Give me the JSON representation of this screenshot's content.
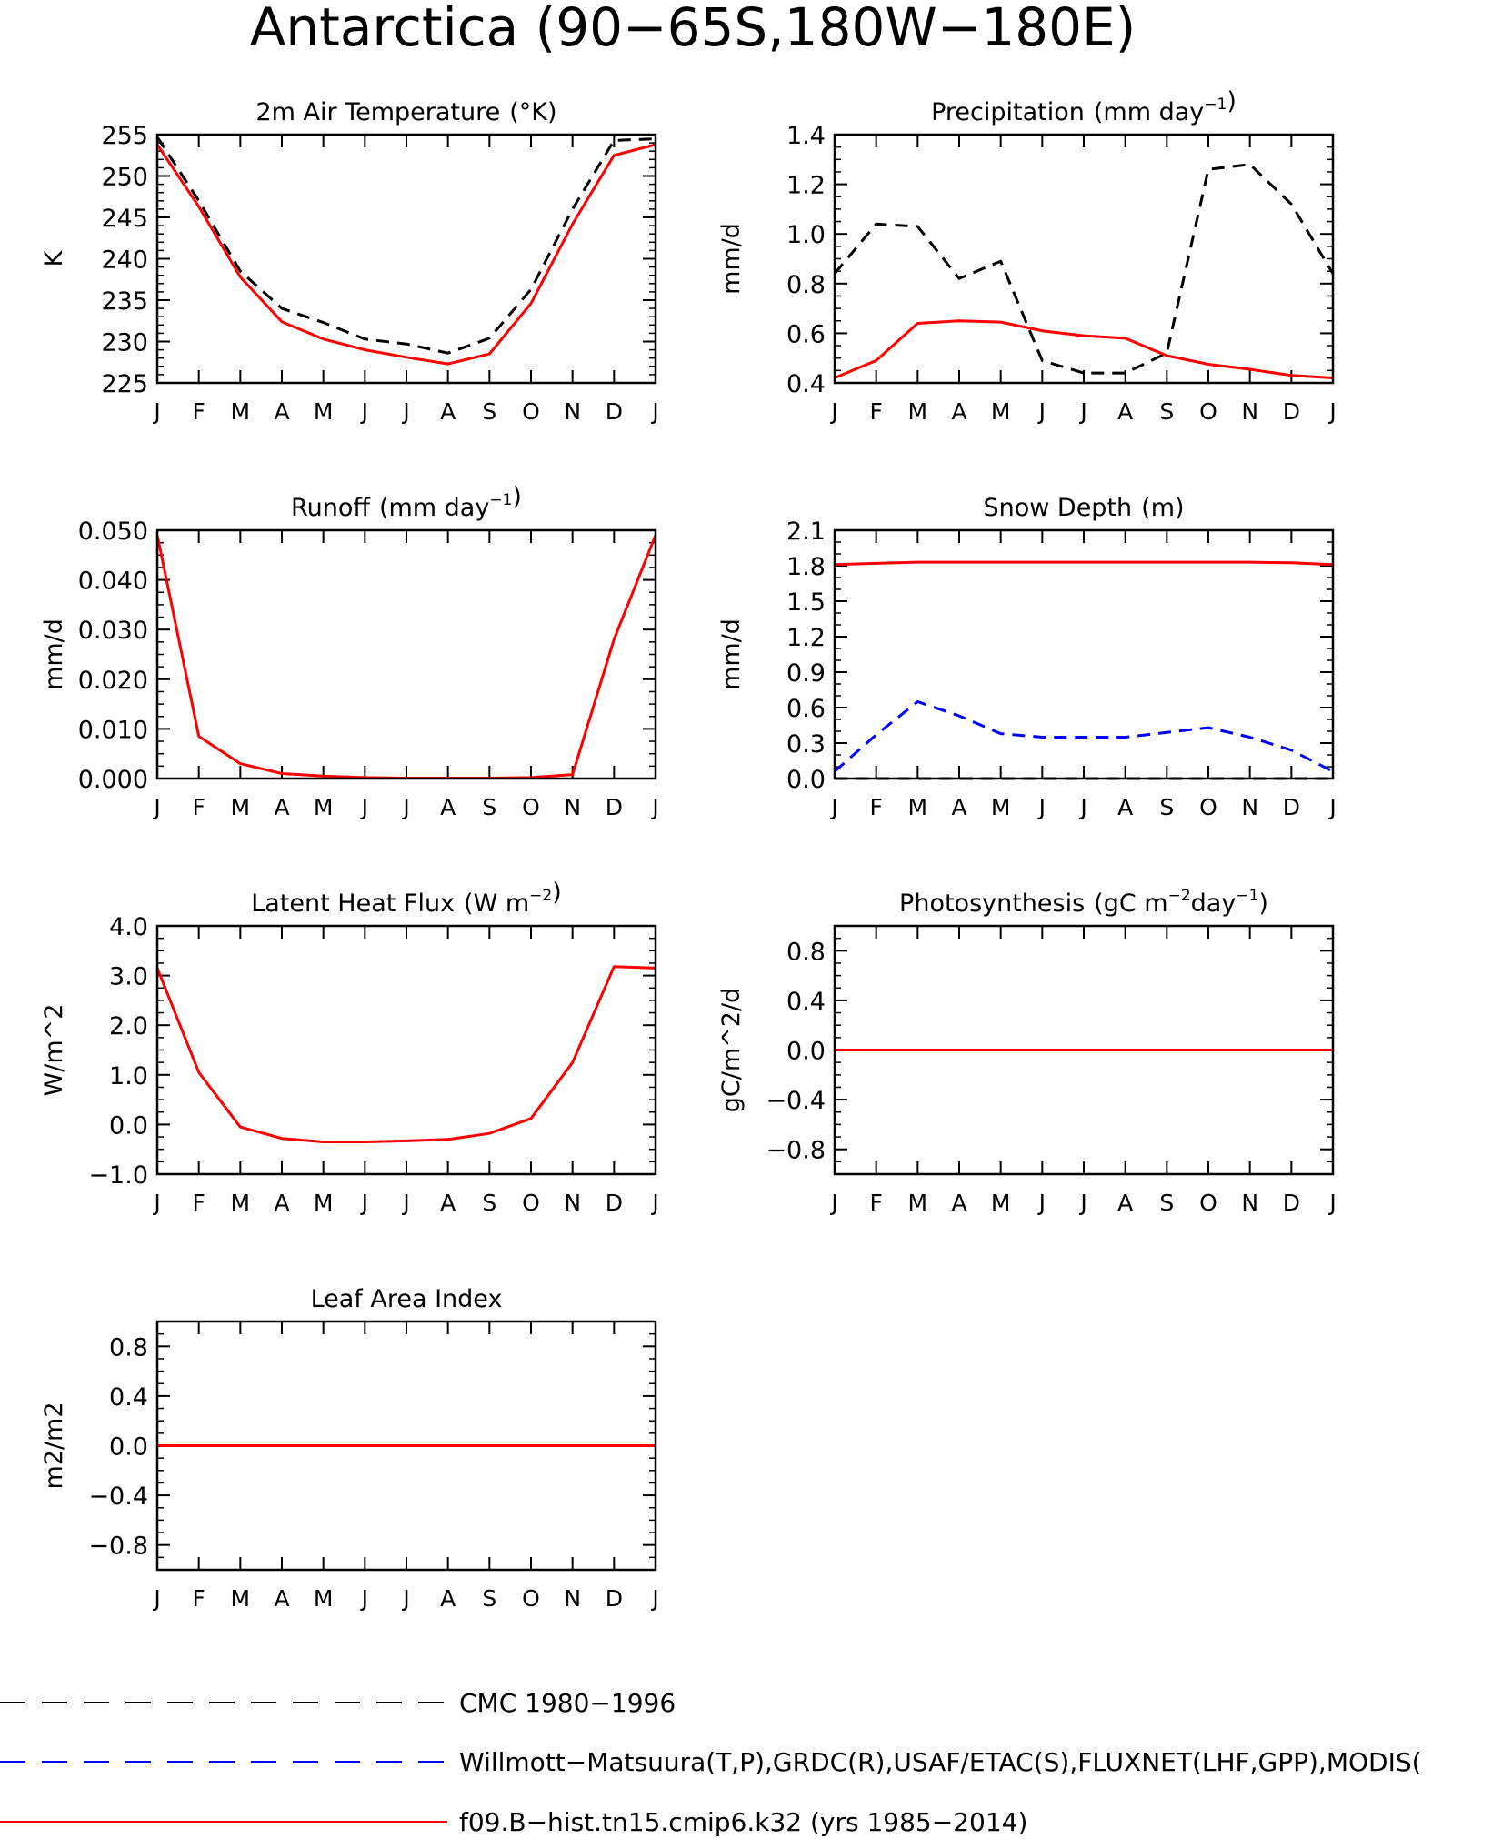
{
  "figure": {
    "title": "Antarctica (90−65S,180W−180E)"
  },
  "months": [
    "J",
    "F",
    "M",
    "A",
    "M",
    "J",
    "J",
    "A",
    "S",
    "O",
    "N",
    "D",
    "J"
  ],
  "legend": [
    {
      "label": "CMC 1980−1996",
      "color": "#000000",
      "dash": "long"
    },
    {
      "label": "Willmott−Matsuura(T,P),GRDC(R),USAF/ETAC(S),FLUXNET(LHF,GPP),MODIS(",
      "color": "#0000ff",
      "dash": "long"
    },
    {
      "label": "f09.B−hist.tn15.cmip6.k32 (yrs 1985−2014)",
      "color": "#ff0000",
      "dash": "solid"
    }
  ],
  "chart_data": [
    {
      "id": "temp",
      "type": "line",
      "title": "2m Air Temperature",
      "title_unit": "(°K)",
      "ylabel": "K",
      "ylim": [
        225,
        255
      ],
      "yticks": [
        225,
        230,
        235,
        240,
        245,
        250,
        255
      ],
      "ytick_labels": [
        "225",
        "230",
        "235",
        "240",
        "245",
        "250",
        "255"
      ],
      "yminor": 1,
      "series": [
        {
          "color": "#000000",
          "dash": "dashed",
          "values": [
            254.7,
            247,
            238.5,
            234,
            232.3,
            230.3,
            229.7,
            228.6,
            230.4,
            236.3,
            246,
            254.3,
            254.5
          ]
        },
        {
          "color": "#ff0000",
          "dash": "solid",
          "values": [
            253.8,
            246.3,
            237.8,
            232.4,
            230.3,
            229,
            228.1,
            227.3,
            228.5,
            234.6,
            244.2,
            252.5,
            253.8
          ]
        }
      ]
    },
    {
      "id": "precip",
      "type": "line",
      "title": "Precipitation",
      "title_unit": "(mm day",
      "title_sup": "−1",
      "title_end": ")",
      "ylabel": "mm/d",
      "ylim": [
        0.4,
        1.4
      ],
      "yticks": [
        0.4,
        0.6,
        0.8,
        1.0,
        1.2,
        1.4
      ],
      "ytick_labels": [
        "0.4",
        "0.6",
        "0.8",
        "1.0",
        "1.2",
        "1.4"
      ],
      "yminor": 0.05,
      "series": [
        {
          "color": "#000000",
          "dash": "dashed",
          "values": [
            0.84,
            1.04,
            1.03,
            0.82,
            0.89,
            0.49,
            0.44,
            0.44,
            0.52,
            1.26,
            1.28,
            1.12,
            0.84
          ]
        },
        {
          "color": "#ff0000",
          "dash": "solid",
          "values": [
            0.42,
            0.49,
            0.64,
            0.65,
            0.645,
            0.61,
            0.59,
            0.58,
            0.51,
            0.475,
            0.455,
            0.43,
            0.42
          ]
        }
      ]
    },
    {
      "id": "runoff",
      "type": "line",
      "title": "Runoff",
      "title_unit": "(mm day",
      "title_sup": "−1",
      "title_end": ")",
      "ylabel": "mm/d",
      "ylim": [
        0,
        0.05
      ],
      "yticks": [
        0,
        0.01,
        0.02,
        0.03,
        0.04,
        0.05
      ],
      "ytick_labels": [
        "0.000",
        "0.010",
        "0.020",
        "0.030",
        "0.040",
        "0.050"
      ],
      "yminor": 0.0025,
      "series": [
        {
          "color": "#ff0000",
          "dash": "solid",
          "values": [
            0.049,
            0.0085,
            0.003,
            0.001,
            0.0005,
            0.0002,
            0.0001,
            0.0001,
            0.0001,
            0.0002,
            0.0008,
            0.028,
            0.049
          ]
        }
      ]
    },
    {
      "id": "snow",
      "type": "line",
      "title": "Snow Depth",
      "title_unit": "(m)",
      "ylabel": "mm/d",
      "ylim": [
        0,
        2.1
      ],
      "yticks": [
        0,
        0.3,
        0.6,
        0.9,
        1.2,
        1.5,
        1.8,
        2.1
      ],
      "ytick_labels": [
        "0.0",
        "0.3",
        "0.6",
        "0.9",
        "1.2",
        "1.5",
        "1.8",
        "2.1"
      ],
      "yminor": 0.1,
      "series": [
        {
          "color": "#000000",
          "dash": "dashed",
          "values": [
            0,
            0,
            0,
            0,
            0,
            0,
            0,
            0,
            0,
            0,
            0,
            0,
            0
          ]
        },
        {
          "color": "#0000ff",
          "dash": "dashed",
          "values": [
            0.06,
            0.37,
            0.65,
            0.53,
            0.38,
            0.35,
            0.35,
            0.35,
            0.39,
            0.43,
            0.35,
            0.24,
            0.06
          ]
        },
        {
          "color": "#ff0000",
          "dash": "solid",
          "values": [
            1.81,
            1.82,
            1.83,
            1.83,
            1.83,
            1.83,
            1.83,
            1.83,
            1.83,
            1.83,
            1.83,
            1.825,
            1.81
          ]
        }
      ]
    },
    {
      "id": "lhf",
      "type": "line",
      "title": "Latent Heat Flux",
      "title_unit": "(W m",
      "title_sup": "−2",
      "title_end": ")",
      "ylabel": "W/m^2",
      "ylim": [
        -1,
        4
      ],
      "yticks": [
        -1,
        0,
        1,
        2,
        3,
        4
      ],
      "ytick_labels": [
        "−1.0",
        "0.0",
        "1.0",
        "2.0",
        "3.0",
        "4.0"
      ],
      "yminor": 0.25,
      "series": [
        {
          "color": "#ff0000",
          "dash": "solid",
          "values": [
            3.15,
            1.05,
            -0.05,
            -0.28,
            -0.35,
            -0.35,
            -0.33,
            -0.3,
            -0.18,
            0.12,
            1.25,
            3.18,
            3.15
          ]
        }
      ]
    },
    {
      "id": "photo",
      "type": "line",
      "title": "Photosynthesis",
      "title_unit": "(gC m",
      "title_sup": "−2",
      "title_mid": "day",
      "title_sup2": "−1",
      "title_end": ")",
      "ylabel": "gC/m^2/d",
      "ylim": [
        -1,
        1
      ],
      "yticks": [
        -0.8,
        -0.4,
        0,
        0.4,
        0.8
      ],
      "ytick_labels": [
        "−0.8",
        "−0.4",
        "0.0",
        "0.4",
        "0.8"
      ],
      "yminor": 0.1,
      "series": [
        {
          "color": "#ff0000",
          "dash": "solid",
          "values": [
            0,
            0,
            0,
            0,
            0,
            0,
            0,
            0,
            0,
            0,
            0,
            0,
            0
          ]
        }
      ]
    },
    {
      "id": "lai",
      "type": "line",
      "title": "Leaf Area Index",
      "ylabel": "m2/m2",
      "ylim": [
        -1,
        1
      ],
      "yticks": [
        -0.8,
        -0.4,
        0,
        0.4,
        0.8
      ],
      "ytick_labels": [
        "−0.8",
        "−0.4",
        "0.0",
        "0.4",
        "0.8"
      ],
      "yminor": 0.1,
      "series": [
        {
          "color": "#ff0000",
          "dash": "solid",
          "values": [
            0,
            0,
            0,
            0,
            0,
            0,
            0,
            0,
            0,
            0,
            0,
            0,
            0
          ]
        }
      ]
    }
  ]
}
